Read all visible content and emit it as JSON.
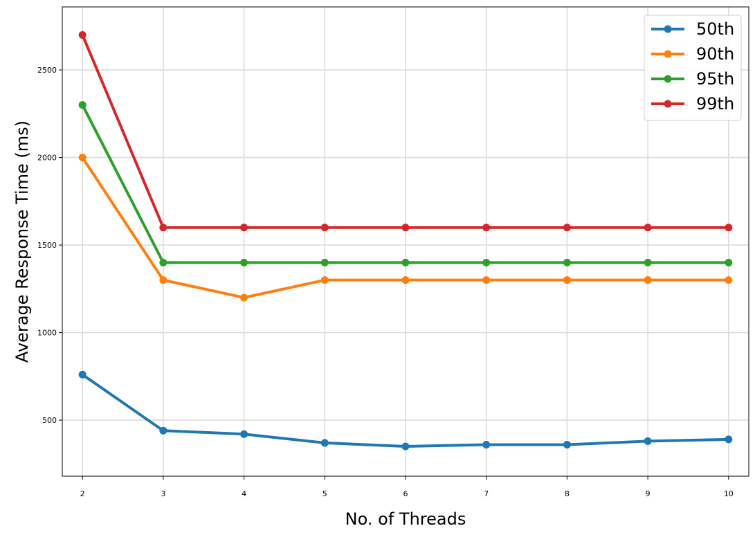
{
  "chart_data": {
    "type": "line",
    "title": "",
    "xlabel": "No. of Threads",
    "ylabel": "Average Response Time (ms)",
    "x": [
      2,
      3,
      4,
      5,
      6,
      7,
      8,
      9,
      10
    ],
    "xticks": [
      "2",
      "3",
      "4",
      "5",
      "6",
      "7",
      "8",
      "9",
      "10"
    ],
    "yticks": [
      500,
      1000,
      1500,
      2000,
      2500
    ],
    "xlim": [
      1.75,
      10.25
    ],
    "ylim": [
      180,
      2860
    ],
    "grid": true,
    "legend_position": "top-right",
    "series": [
      {
        "name": "50th",
        "color": "#1f77b4",
        "values": [
          760,
          440,
          420,
          370,
          350,
          360,
          360,
          380,
          390
        ]
      },
      {
        "name": "90th",
        "color": "#ff7f0e",
        "values": [
          2000,
          1300,
          1200,
          1300,
          1300,
          1300,
          1300,
          1300,
          1300
        ]
      },
      {
        "name": "95th",
        "color": "#2ca02c",
        "values": [
          2300,
          1400,
          1400,
          1400,
          1400,
          1400,
          1400,
          1400,
          1400
        ]
      },
      {
        "name": "99th",
        "color": "#d62728",
        "values": [
          2700,
          1600,
          1600,
          1600,
          1600,
          1600,
          1600,
          1600,
          1600
        ]
      }
    ]
  }
}
